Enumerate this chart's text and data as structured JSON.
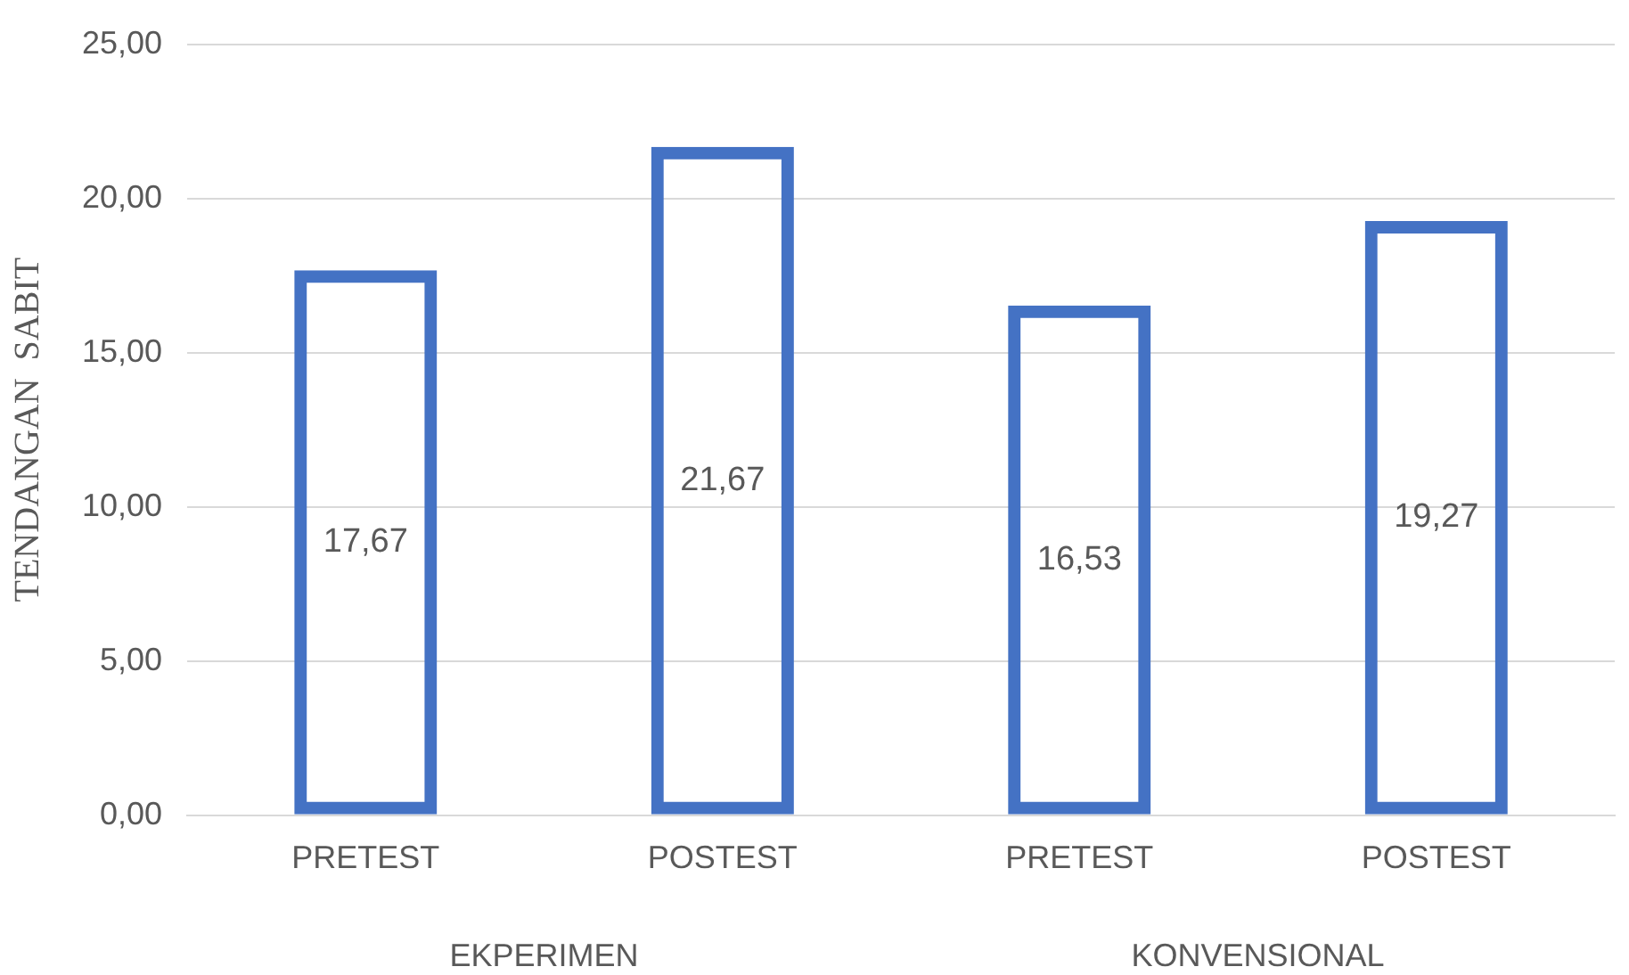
{
  "chart_data": {
    "type": "bar",
    "ylabel": "TENDANGAN  SABIT",
    "categories": [
      "PRETEST",
      "POSTEST",
      "PRETEST",
      "POSTEST"
    ],
    "values": [
      17.67,
      21.67,
      16.53,
      19.27
    ],
    "color": "#4472c4",
    "value_labels": [
      "17,67",
      "21,67",
      "16,53",
      "19,27"
    ],
    "ylim": [
      0,
      25
    ],
    "yticks": [
      {
        "value": 0,
        "label": "0,00"
      },
      {
        "value": 5,
        "label": "5,00"
      },
      {
        "value": 10,
        "label": "10,00"
      },
      {
        "value": 15,
        "label": "15,00"
      },
      {
        "value": 20,
        "label": "20,00"
      },
      {
        "value": 25,
        "label": "25,00"
      }
    ],
    "grid": "y",
    "annotations": [
      "EKPERIMEN",
      "KONVENSIONAL"
    ]
  }
}
